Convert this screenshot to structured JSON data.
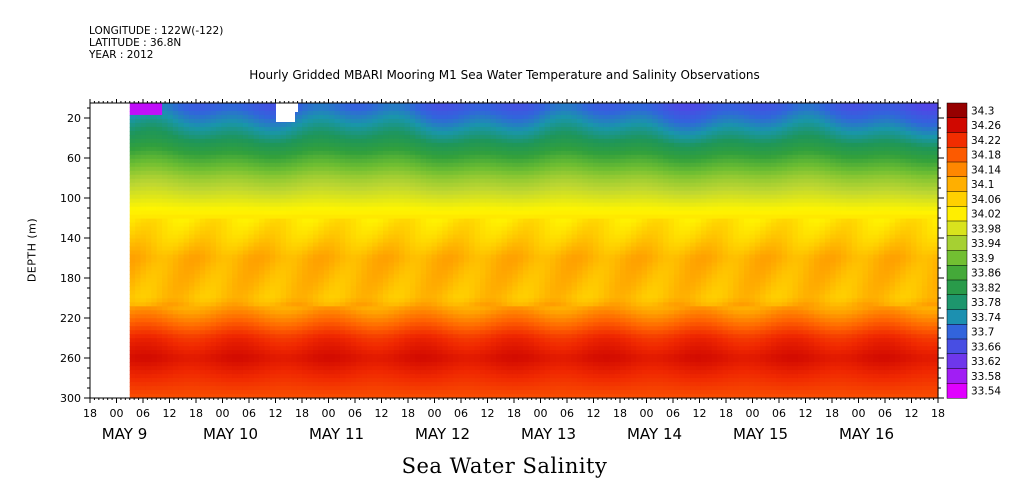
{
  "header": {
    "longitude": "LONGITUDE : 122W(-122)",
    "latitude": "LATITUDE : 36.8N",
    "year": "YEAR : 2012"
  },
  "chart_data": {
    "type": "heatmap",
    "title": "Hourly Gridded MBARI Mooring M1 Sea Water Temperature and Salinity Observations",
    "xlabel": "",
    "ylabel": "DEPTH (m)",
    "bottom_title": "Sea Water Salinity",
    "y_ticks": [
      20,
      60,
      100,
      140,
      180,
      220,
      260,
      300
    ],
    "ylim": [
      300,
      5
    ],
    "y_inverted": true,
    "x_hour_labels": [
      "18",
      "00",
      "06",
      "12",
      "18",
      "00",
      "06",
      "12",
      "18",
      "00",
      "06",
      "12",
      "18",
      "00",
      "06",
      "12",
      "18",
      "00",
      "06",
      "12",
      "18",
      "00",
      "06",
      "12",
      "18",
      "00",
      "06",
      "12",
      "18",
      "00",
      "06",
      "12",
      "18"
    ],
    "x_day_labels": [
      "MAY  9",
      "MAY 10",
      "MAY 11",
      "MAY 12",
      "MAY 13",
      "MAY 14",
      "MAY 15",
      "MAY 16"
    ],
    "data_start": "May 9 03:00",
    "colorbar_levels": [
      33.54,
      33.58,
      33.62,
      33.66,
      33.7,
      33.74,
      33.78,
      33.82,
      33.86,
      33.9,
      33.94,
      33.98,
      34.02,
      34.06,
      34.1,
      34.14,
      34.18,
      34.22,
      34.26,
      34.3
    ],
    "colorbar_range": [
      33.54,
      34.3
    ],
    "depth_profile": [
      {
        "depth": 10,
        "salinity": 33.69
      },
      {
        "depth": 20,
        "salinity": 33.72
      },
      {
        "depth": 40,
        "salinity": 33.78
      },
      {
        "depth": 60,
        "salinity": 33.86
      },
      {
        "depth": 80,
        "salinity": 33.93
      },
      {
        "depth": 100,
        "salinity": 33.98
      },
      {
        "depth": 120,
        "salinity": 34.03
      },
      {
        "depth": 140,
        "salinity": 34.06
      },
      {
        "depth": 160,
        "salinity": 34.1
      },
      {
        "depth": 180,
        "salinity": 34.09
      },
      {
        "depth": 200,
        "salinity": 34.08
      },
      {
        "depth": 220,
        "salinity": 34.15
      },
      {
        "depth": 240,
        "salinity": 34.22
      },
      {
        "depth": 260,
        "salinity": 34.25
      },
      {
        "depth": 280,
        "salinity": 34.22
      },
      {
        "depth": 300,
        "salinity": 34.19
      }
    ],
    "grid": false
  }
}
